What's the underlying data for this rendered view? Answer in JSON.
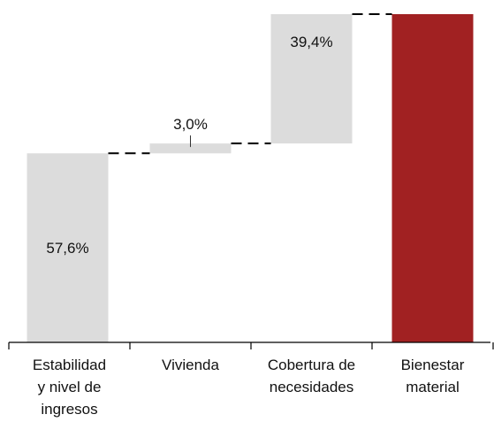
{
  "chart_data": {
    "type": "bar",
    "subtype": "waterfall",
    "title": "",
    "xlabel": "",
    "ylabel": "",
    "ylim": [
      0,
      100
    ],
    "grid": false,
    "categories": [
      [
        "Estabilidad",
        "y nivel de",
        "ingresos"
      ],
      [
        "Vivienda"
      ],
      [
        "Cobertura de",
        "necesidades"
      ],
      [
        "Bienestar",
        "material"
      ]
    ],
    "values": [
      57.6,
      3.0,
      39.4,
      100
    ],
    "kinds": [
      "increment",
      "increment",
      "increment",
      "total"
    ],
    "data_labels": [
      "57,6%",
      "3,0%",
      "39,4%",
      ""
    ],
    "colors": {
      "increment": "#dcdcdc",
      "total": "#a12122",
      "connector": "#000000",
      "axis": "#000000"
    }
  }
}
